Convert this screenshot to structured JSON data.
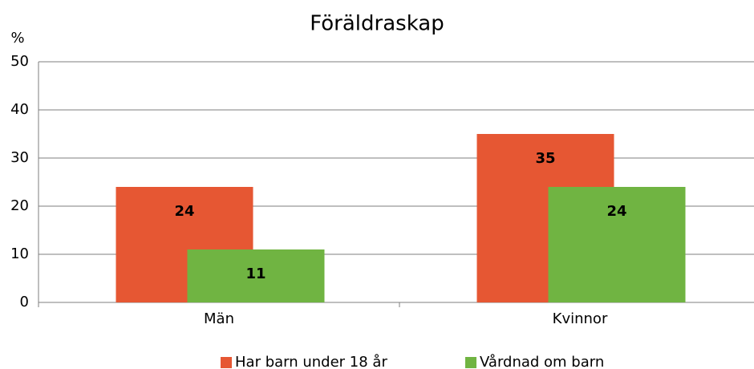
{
  "chart_data": {
    "type": "bar",
    "title": "Föräldraskap",
    "y_label": "%",
    "categories": [
      "Män",
      "Kvinnor"
    ],
    "series": [
      {
        "name": "Har barn under 18 år",
        "color": "#e65733",
        "values": [
          24,
          35
        ]
      },
      {
        "name": "Vårdnad om barn",
        "color": "#70b442",
        "values": [
          11,
          24
        ]
      }
    ],
    "ylim": [
      0,
      50
    ],
    "yticks": [
      0,
      10,
      20,
      30,
      40,
      50
    ],
    "grid": true,
    "legend": "bottom"
  }
}
